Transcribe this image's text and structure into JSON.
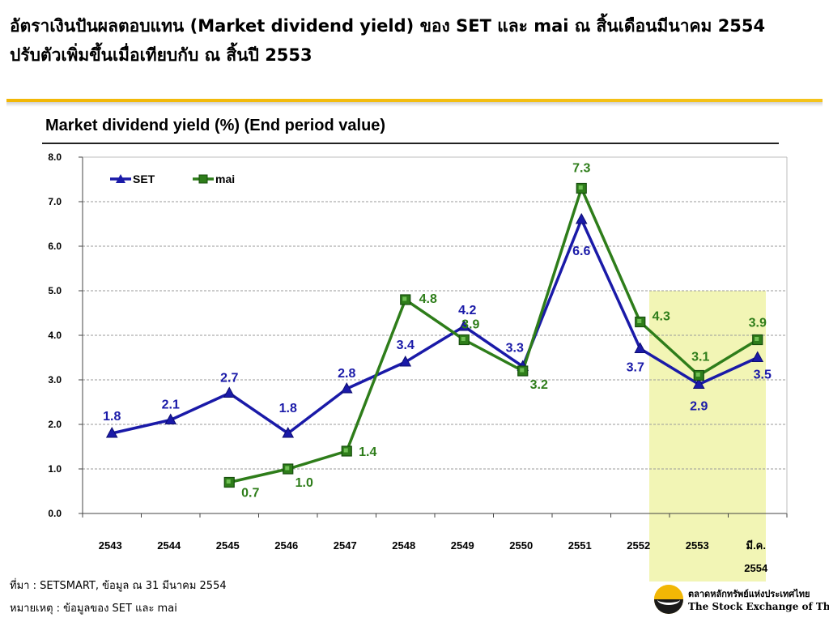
{
  "headline": {
    "line1": "อัตราเงินปันผลตอบแทน (Market dividend yield) ของ SET และ mai ณ สิ้นเดือนมีนาคม 2554",
    "line2": "ปรับตัวเพิ่มขึ้นเมื่อเทียบกับ ณ สิ้นปี 2553"
  },
  "chart_data": {
    "type": "line",
    "title": "Market dividend yield (%) (End period value)",
    "xlabel": "",
    "ylabel": "",
    "categories": [
      "2543",
      "2544",
      "2545",
      "2546",
      "2547",
      "2548",
      "2549",
      "2550",
      "2551",
      "2552",
      "2553",
      "มี.ค. 2554"
    ],
    "y_ticks": [
      "0.0",
      "1.0",
      "2.0",
      "3.0",
      "4.0",
      "5.0",
      "6.0",
      "7.0",
      "8.0"
    ],
    "ylim": [
      0,
      8
    ],
    "grid": true,
    "legend_position": "top-left",
    "highlight_range": {
      "from": "2553",
      "to": "มี.ค. 2554",
      "ymax": 5.0,
      "color": "#f2f5b5"
    },
    "series": [
      {
        "name": "SET",
        "color": "#1a1aa8",
        "marker": "triangle",
        "values": [
          1.8,
          2.1,
          2.7,
          1.8,
          2.8,
          3.4,
          4.2,
          3.3,
          6.6,
          3.7,
          2.9,
          3.5
        ],
        "labels": [
          "1.8",
          "2.1",
          "2.7",
          "1.8",
          "2.8",
          "3.4",
          "4.2",
          "3.3",
          "6.6",
          "3.7",
          "2.9",
          "3.5"
        ]
      },
      {
        "name": "mai",
        "color": "#2e7d1a",
        "marker": "square",
        "values": [
          null,
          null,
          0.7,
          1.0,
          1.4,
          4.8,
          3.9,
          3.2,
          7.3,
          4.3,
          3.1,
          3.9
        ],
        "labels": [
          null,
          null,
          "0.7",
          "1.0",
          "1.4",
          "4.8",
          "3.9",
          "3.2",
          "7.3",
          "4.3",
          "3.1",
          "3.9"
        ]
      }
    ]
  },
  "footnotes": {
    "source": "ที่มา : SETSMART, ข้อมูล ณ 31 มีนาคม 2554",
    "remark": "หมายเหตุ : ข้อมูลของ SET และ mai"
  },
  "logo": {
    "thai": "ตลาดหลักทรัพย์แห่งประเทศไทย",
    "english": "The Stock Exchange of Thailand"
  }
}
